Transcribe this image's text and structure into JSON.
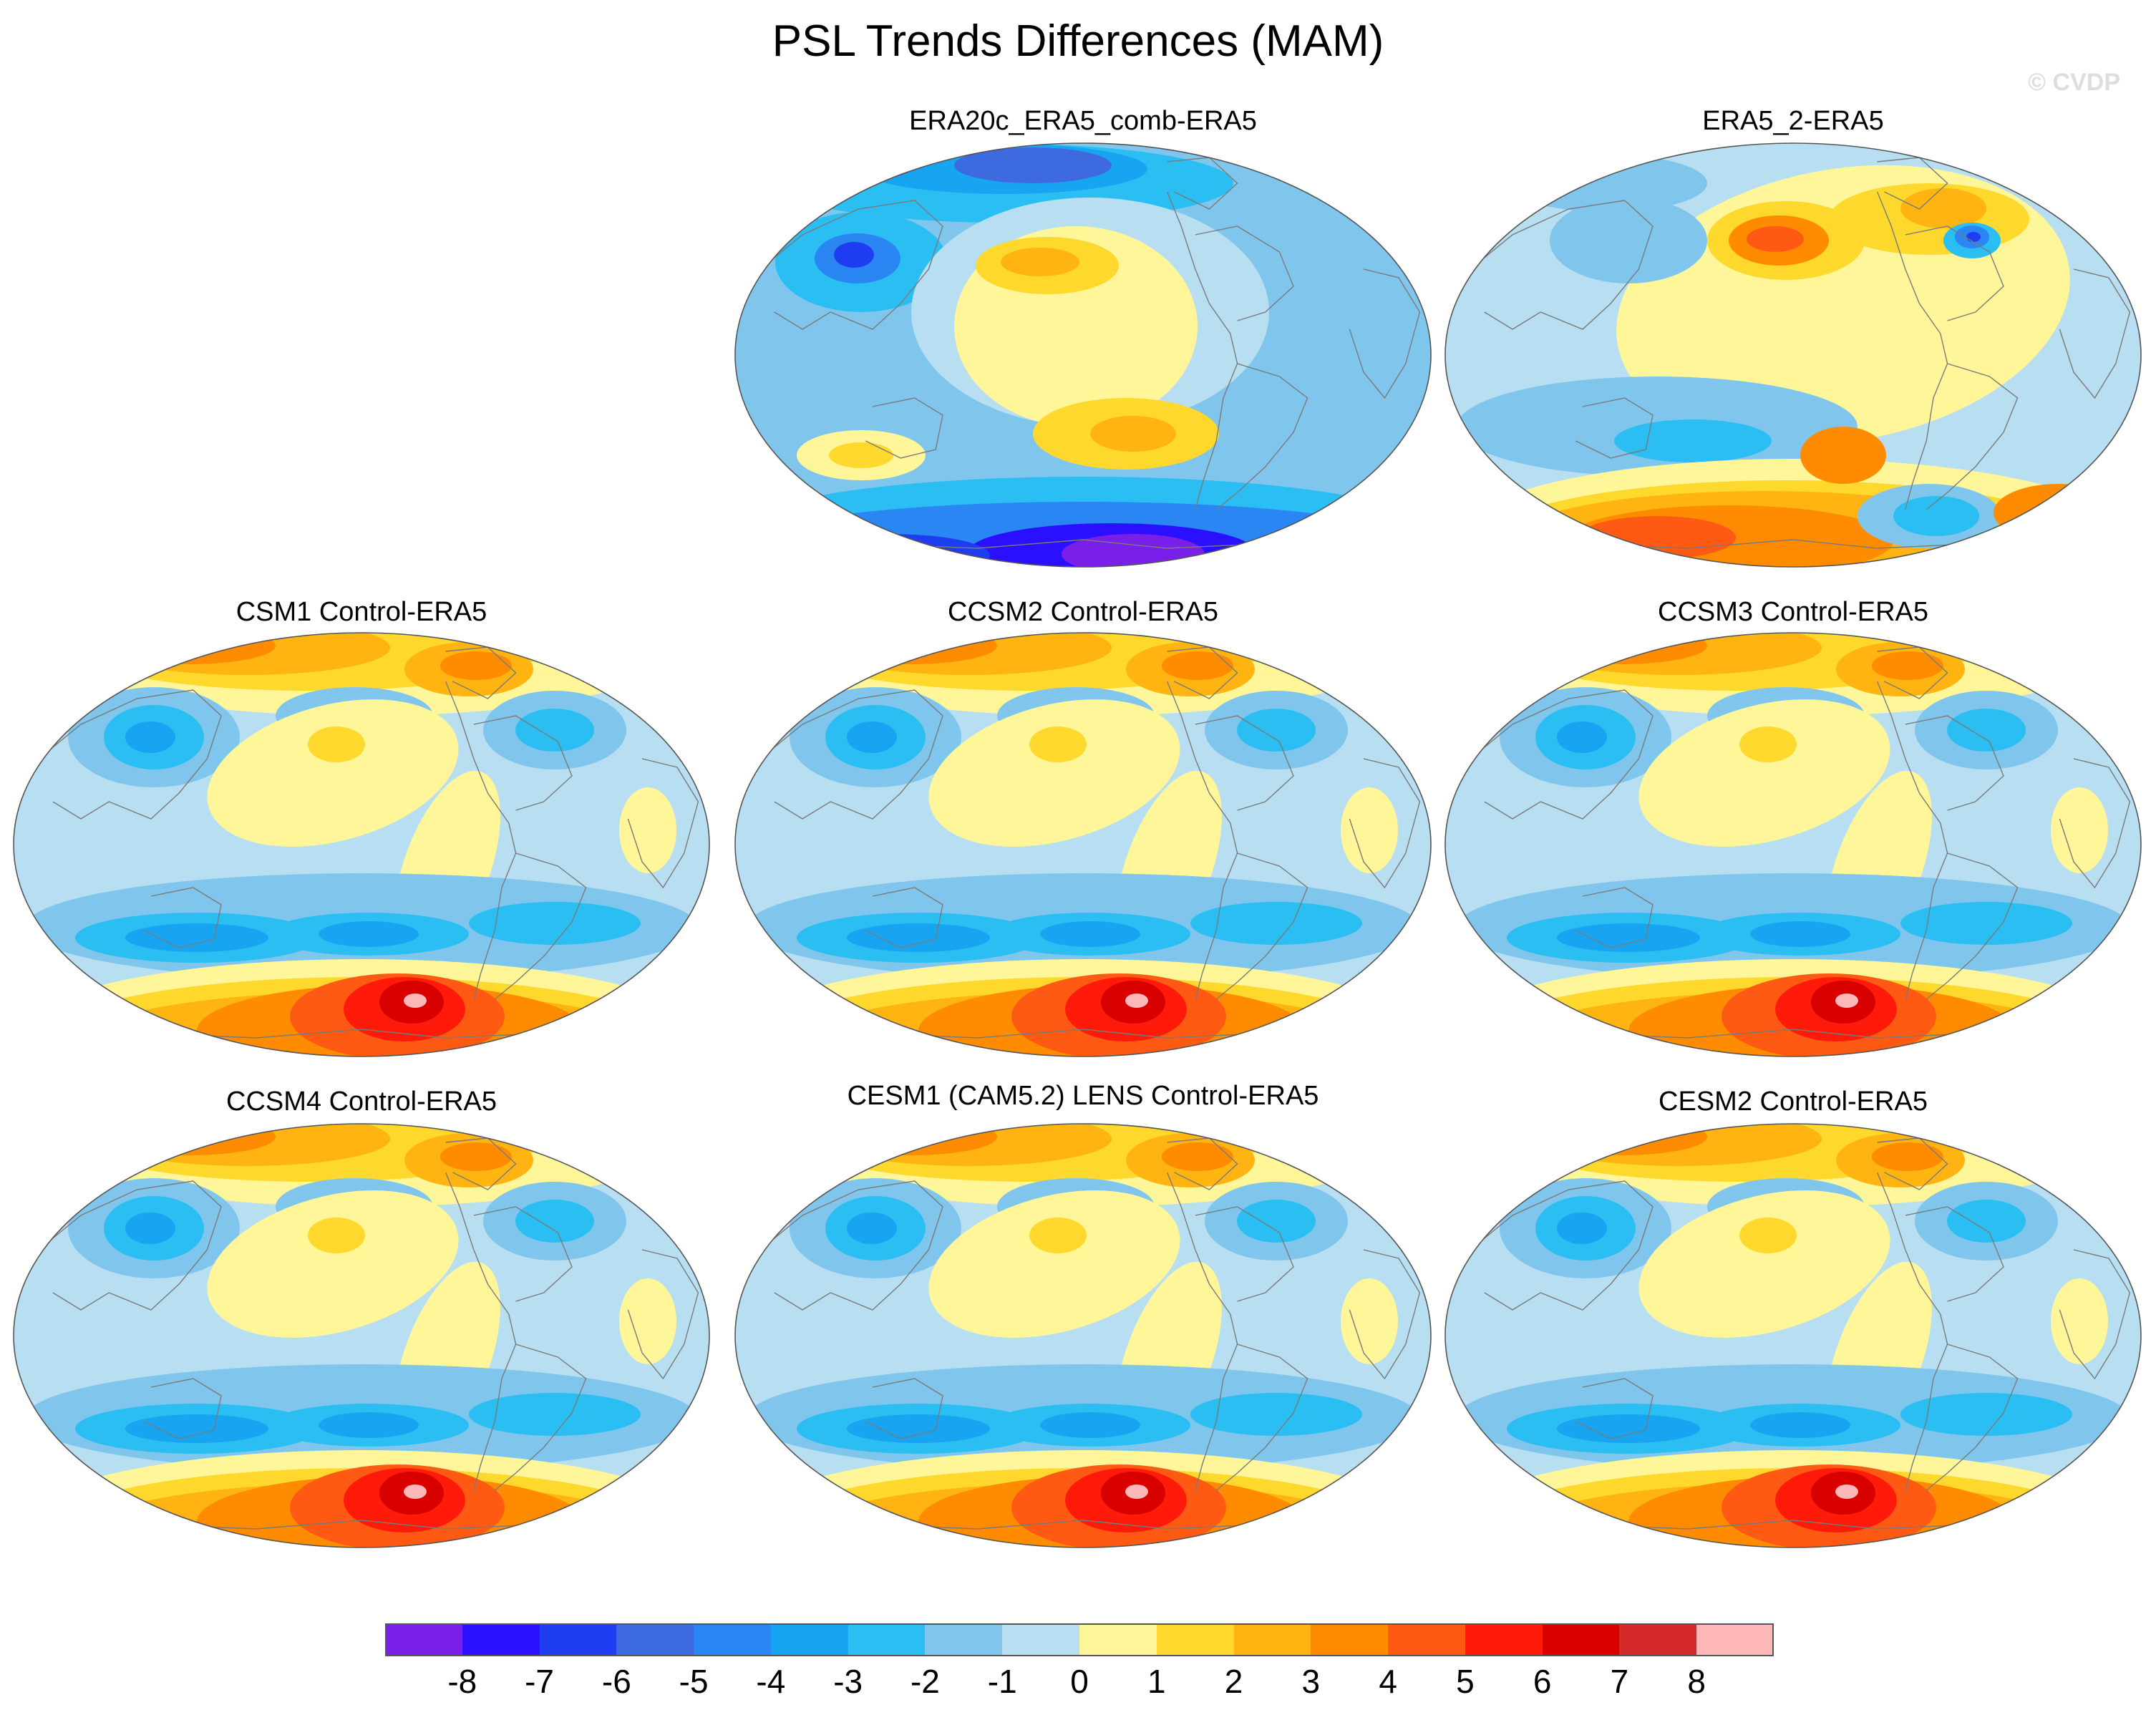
{
  "title": "PSL Trends Differences (MAM)",
  "credit": "© CVDP",
  "colors": {
    "lv_n9": "#7a1fe8",
    "lv_n8": "#2a10ff",
    "lv_n7": "#1e3cf0",
    "lv_n6": "#3e6ae0",
    "lv_n5": "#2a86f2",
    "lv_n4": "#17a4f0",
    "lv_n3": "#2bbef2",
    "lv_n2": "#80c6ec",
    "lv_n1": "#b8def2",
    "lv_p0": "#fff69a",
    "lv_p1": "#ffd82e",
    "lv_p2": "#ffb411",
    "lv_p3": "#ff8c00",
    "lv_p4": "#ff5a14",
    "lv_p5": "#ff1a0a",
    "lv_p6": "#d90000",
    "lv_p7": "#d42a2a",
    "lv_p8": "#ffb8b8"
  },
  "colorbar": {
    "boxes": [
      "#7a1fe8",
      "#2a10ff",
      "#1e3cf0",
      "#3e6ae0",
      "#2a86f2",
      "#17a4f0",
      "#2bbef2",
      "#80c6ec",
      "#b8def2",
      "#fff69a",
      "#ffd82e",
      "#ffb411",
      "#ff8c00",
      "#ff5a14",
      "#ff1a0a",
      "#d90000",
      "#d42a2a",
      "#ffb8b8"
    ],
    "labels": [
      "-8",
      "-7",
      "-6",
      "-5",
      "-4",
      "-3",
      "-2",
      "-1",
      "0",
      "1",
      "2",
      "3",
      "4",
      "5",
      "6",
      "7",
      "8"
    ]
  },
  "panels": [
    {
      "title": "ERA20c_ERA5_comb-ERA5",
      "pattern": "era20c"
    },
    {
      "title": "ERA5_2-ERA5",
      "pattern": "era5_2"
    },
    {
      "title": "CSM1 Control-ERA5",
      "pattern": "model"
    },
    {
      "title": "CCSM2 Control-ERA5",
      "pattern": "model"
    },
    {
      "title": "CCSM3 Control-ERA5",
      "pattern": "model"
    },
    {
      "title": "CCSM4 Control-ERA5",
      "pattern": "model"
    },
    {
      "title": "CESM1 (CAM5.2) LENS Control-ERA5",
      "pattern": "model"
    },
    {
      "title": "CESM2 Control-ERA5",
      "pattern": "model"
    }
  ]
}
